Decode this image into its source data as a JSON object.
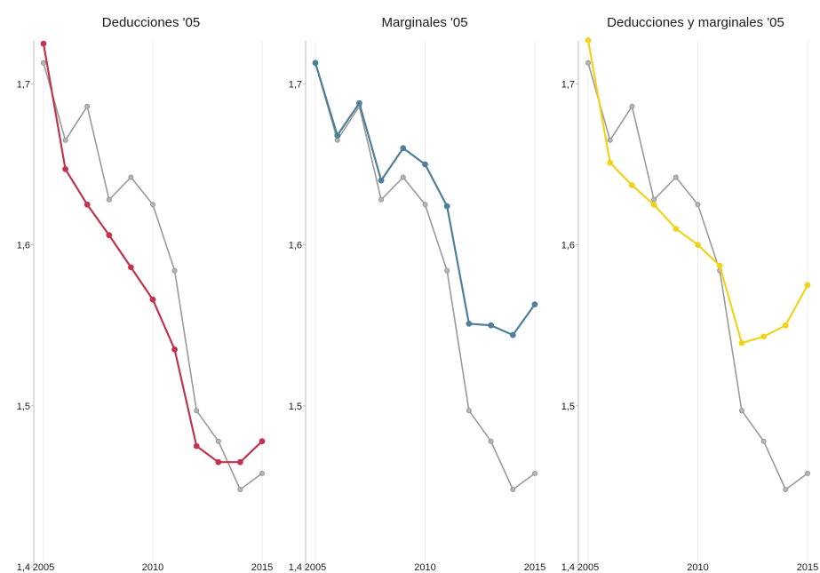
{
  "chart_data": [
    {
      "type": "line",
      "title": "Deducciones '05",
      "xlabel": "",
      "ylabel": "",
      "xlim": [
        2005,
        2015
      ],
      "ylim": [
        1.4,
        1.73
      ],
      "xticks": [
        "2005",
        "2010",
        "2015"
      ],
      "yticks": [
        "1,4",
        "1,5",
        "1,6",
        "1,7"
      ],
      "grid": "vertical",
      "x": [
        2005,
        2006,
        2007,
        2008,
        2009,
        2010,
        2011,
        2012,
        2013,
        2014,
        2015
      ],
      "series": [
        {
          "role": "baseline",
          "color": "#9a9a9a",
          "values": [
            1.713,
            1.665,
            1.686,
            1.628,
            1.642,
            1.625,
            1.584,
            1.497,
            1.478,
            1.448,
            1.458
          ]
        },
        {
          "role": "scenario",
          "color": "#c0344f",
          "values": [
            1.725,
            1.647,
            1.625,
            1.606,
            1.586,
            1.566,
            1.535,
            1.475,
            1.465,
            1.465,
            1.478
          ]
        }
      ]
    },
    {
      "type": "line",
      "title": "Marginales '05",
      "xlabel": "",
      "ylabel": "",
      "xlim": [
        2005,
        2015
      ],
      "ylim": [
        1.4,
        1.73
      ],
      "xticks": [
        "2005",
        "2010",
        "2015"
      ],
      "yticks": [
        "1,4",
        "1,5",
        "1,6",
        "1,7"
      ],
      "grid": "vertical",
      "x": [
        2005,
        2006,
        2007,
        2008,
        2009,
        2010,
        2011,
        2012,
        2013,
        2014,
        2015
      ],
      "series": [
        {
          "role": "baseline",
          "color": "#9a9a9a",
          "values": [
            1.713,
            1.665,
            1.686,
            1.628,
            1.642,
            1.625,
            1.584,
            1.497,
            1.478,
            1.448,
            1.458
          ]
        },
        {
          "role": "scenario",
          "color": "#4f7f99",
          "values": [
            1.713,
            1.668,
            1.688,
            1.64,
            1.66,
            1.65,
            1.624,
            1.551,
            1.55,
            1.544,
            1.563
          ]
        }
      ]
    },
    {
      "type": "line",
      "title": "Deducciones y marginales '05",
      "xlabel": "",
      "ylabel": "",
      "xlim": [
        2005,
        2015
      ],
      "ylim": [
        1.4,
        1.73
      ],
      "xticks": [
        "2005",
        "2010",
        "2015"
      ],
      "yticks": [
        "1,4",
        "1,5",
        "1,6",
        "1,7"
      ],
      "grid": "vertical",
      "x": [
        2005,
        2006,
        2007,
        2008,
        2009,
        2010,
        2011,
        2012,
        2013,
        2014,
        2015
      ],
      "series": [
        {
          "role": "baseline",
          "color": "#9a9a9a",
          "values": [
            1.713,
            1.665,
            1.686,
            1.628,
            1.642,
            1.625,
            1.584,
            1.497,
            1.478,
            1.448,
            1.458
          ]
        },
        {
          "role": "scenario",
          "color": "#f0d31c",
          "values": [
            1.727,
            1.651,
            1.637,
            1.625,
            1.61,
            1.6,
            1.587,
            1.539,
            1.543,
            1.55,
            1.575
          ]
        }
      ]
    }
  ]
}
